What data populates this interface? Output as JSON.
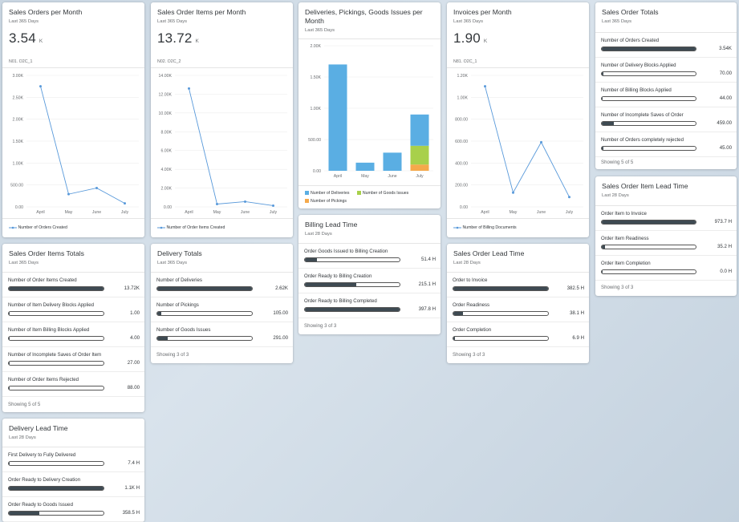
{
  "cards": {
    "sales_orders_month": {
      "title": "Sales Orders per Month",
      "subtitle": "Last 365 Days",
      "kpi_value": "3.54",
      "kpi_unit": "K",
      "tag": "N01. O2C_1",
      "legend": "Number of Orders Created"
    },
    "sales_order_items_month": {
      "title": "Sales Order Items per Month",
      "subtitle": "Last 365 Days",
      "kpi_value": "13.72",
      "kpi_unit": "K",
      "tag": "N02. O2C_2",
      "legend": "Number of Order Items Created"
    },
    "deliveries": {
      "title": "Deliveries, Pickings, Goods Issues per Month",
      "subtitle": "Last 365 Days",
      "legend": [
        "Number of Deliveries",
        "Number of Goods Issues",
        "Number of Pickings"
      ]
    },
    "invoices_month": {
      "title": "Invoices per Month",
      "subtitle": "Last 365 Days",
      "kpi_value": "1.90",
      "kpi_unit": "K",
      "tag": "N81. O2C_1",
      "legend": "Number of Billing Documents"
    },
    "sales_order_totals": {
      "title": "Sales Order Totals",
      "subtitle": "Last 365 Days",
      "rows": [
        {
          "label": "Number of Orders Created",
          "value": "3.54K",
          "fill": 1.0
        },
        {
          "label": "Number of Delivery Blocks Applied",
          "value": "70.00",
          "fill": 0.02
        },
        {
          "label": "Number of Billing Blocks Applied",
          "value": "44.00",
          "fill": 0.012
        },
        {
          "label": "Number of Incomplete Saves of Order",
          "value": "459.00",
          "fill": 0.13
        },
        {
          "label": "Number of Orders completely rejected",
          "value": "45.00",
          "fill": 0.013
        }
      ],
      "footer": "Showing 5 of 5"
    },
    "sales_order_item_lead": {
      "title": "Sales Order Item Lead Time",
      "subtitle": "Last 28 Days",
      "rows": [
        {
          "label": "Order Item to Invoice",
          "value": "973.7 H",
          "fill": 1.0
        },
        {
          "label": "Order Item Readiness",
          "value": "35.2 H",
          "fill": 0.036
        },
        {
          "label": "Order Item Completion",
          "value": "0.0 H",
          "fill": 0.0
        }
      ],
      "footer": "Showing 3 of 3"
    },
    "sales_order_items_totals": {
      "title": "Sales Order Items Totals",
      "subtitle": "Last 365 Days",
      "rows": [
        {
          "label": "Number of Order Items Created",
          "value": "13.72K",
          "fill": 1.0
        },
        {
          "label": "Number of Item Delivery Blocks Applied",
          "value": "1.00",
          "fill": 0.001
        },
        {
          "label": "Number of Item Billing Blocks Applied",
          "value": "4.00",
          "fill": 0.002
        },
        {
          "label": "Number of Incomplete Saves of Order Item",
          "value": "27.00",
          "fill": 0.004
        },
        {
          "label": "Number of Order Items Rejected",
          "value": "88.00",
          "fill": 0.008
        }
      ],
      "footer": "Showing 5 of 5"
    },
    "delivery_totals": {
      "title": "Delivery Totals",
      "subtitle": "Last 365 Days",
      "rows": [
        {
          "label": "Number of Deliveries",
          "value": "2.62K",
          "fill": 1.0
        },
        {
          "label": "Number of Pickings",
          "value": "105.00",
          "fill": 0.04
        },
        {
          "label": "Number of Goods Issues",
          "value": "291.00",
          "fill": 0.11
        }
      ],
      "footer": "Showing 3 of 3"
    },
    "billing_lead": {
      "title": "Billing Lead Time",
      "subtitle": "Last 28 Days",
      "rows": [
        {
          "label": "Order Goods Issued to Billing Creation",
          "value": "51.4 H",
          "fill": 0.13
        },
        {
          "label": "Order Ready to Billing Creation",
          "value": "215.1 H",
          "fill": 0.54
        },
        {
          "label": "Order Ready to Billing Completed",
          "value": "397.8 H",
          "fill": 1.0
        }
      ],
      "footer": "Showing 3 of 3"
    },
    "sales_order_lead": {
      "title": "Sales Order Lead Time",
      "subtitle": "Last 28 Days",
      "rows": [
        {
          "label": "Order to Invoice",
          "value": "382.5 H",
          "fill": 1.0
        },
        {
          "label": "Order Readiness",
          "value": "38.1 H",
          "fill": 0.1
        },
        {
          "label": "Order Completion",
          "value": "6.9 H",
          "fill": 0.02
        }
      ],
      "footer": "Showing 3 of 3"
    },
    "delivery_lead": {
      "title": "Delivery Lead Time",
      "subtitle": "Last 28 Days",
      "rows": [
        {
          "label": "First Delivery to Fully Delivered",
          "value": "7.4 H",
          "fill": 0.005
        },
        {
          "label": "Order Ready to Delivery Creation",
          "value": "1.1K H",
          "fill": 1.0
        },
        {
          "label": "Order Ready to Goods Issued",
          "value": "358.5 H",
          "fill": 0.32
        }
      ]
    }
  },
  "colors": {
    "line": "#5899da",
    "deliveries": "#5aaee3",
    "goods_issues": "#a8d04b",
    "pickings": "#f5a94b",
    "bar_fill": "#3e4a52"
  },
  "chart_data": [
    {
      "type": "line",
      "categories": [
        "April",
        "May",
        "June",
        "July"
      ],
      "series": [
        {
          "name": "Number of Orders Created",
          "values": [
            2750,
            290,
            430,
            80
          ]
        }
      ],
      "ylim": [
        0,
        3000
      ],
      "yticks": [
        "0.00",
        "500.00",
        "1.00K",
        "1.50K",
        "2.00K",
        "2.50K",
        "3.00K"
      ]
    },
    {
      "type": "line",
      "categories": [
        "April",
        "May",
        "June",
        "July"
      ],
      "series": [
        {
          "name": "Number of Order Items Created",
          "values": [
            12600,
            300,
            560,
            130
          ]
        }
      ],
      "ylim": [
        0,
        14000
      ],
      "yticks": [
        "0.00",
        "2.00K",
        "4.00K",
        "6.00K",
        "8.00K",
        "10.00K",
        "12.00K",
        "14.00K"
      ]
    },
    {
      "type": "bar",
      "categories": [
        "April",
        "May",
        "June",
        "July"
      ],
      "series": [
        {
          "name": "Number of Deliveries",
          "values": [
            1700,
            130,
            290,
            500
          ]
        },
        {
          "name": "Number of Goods Issues",
          "values": [
            0,
            0,
            0,
            300
          ]
        },
        {
          "name": "Number of Pickings",
          "values": [
            0,
            0,
            0,
            100
          ]
        }
      ],
      "ylim": [
        0,
        2000
      ],
      "yticks": [
        "0.00",
        "500.00",
        "1.00K",
        "1.50K",
        "2.00K"
      ]
    },
    {
      "type": "line",
      "categories": [
        "April",
        "May",
        "June",
        "July"
      ],
      "series": [
        {
          "name": "Number of Billing Documents",
          "values": [
            1100,
            130,
            590,
            90
          ]
        }
      ],
      "ylim": [
        0,
        1200
      ],
      "yticks": [
        "0.00",
        "200.00",
        "400.00",
        "600.00",
        "800.00",
        "1.00K",
        "1.20K"
      ]
    }
  ]
}
